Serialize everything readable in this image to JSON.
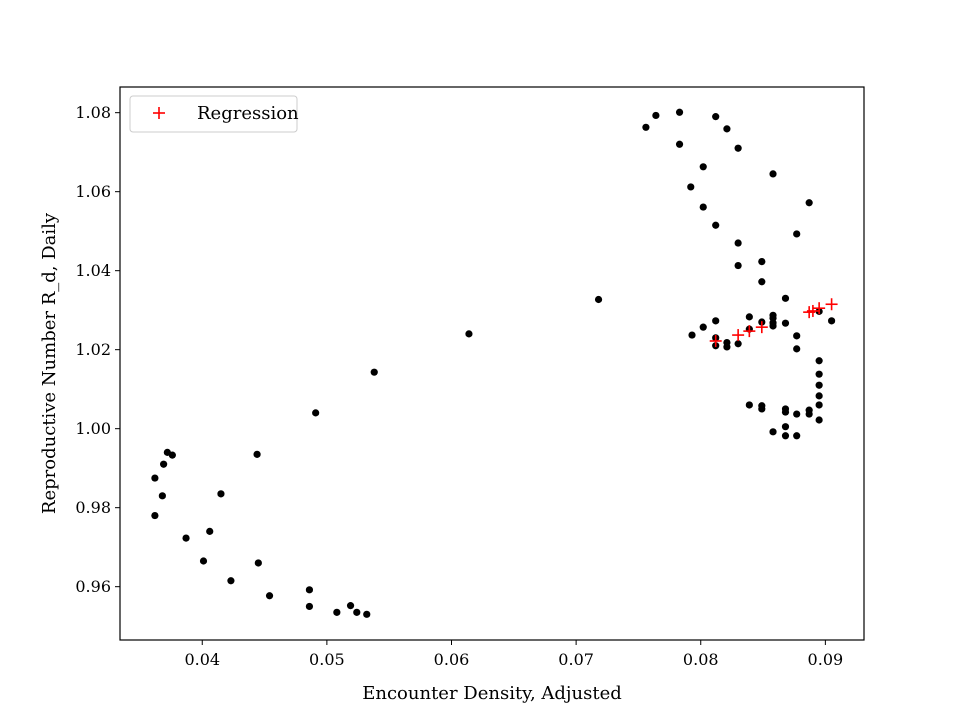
{
  "chart_data": {
    "type": "scatter",
    "xlabel": "Encounter Density, Adjusted",
    "ylabel": "Reproductive Number R_d, Daily",
    "xlim": [
      0.0334,
      0.0931
    ],
    "ylim": [
      0.9465,
      1.0865
    ],
    "xticks": [
      "0.04",
      "0.05",
      "0.06",
      "0.07",
      "0.08",
      "0.09"
    ],
    "xtick_values": [
      0.04,
      0.05,
      0.06,
      0.07,
      0.08,
      0.09
    ],
    "yticks": [
      "0.96",
      "0.98",
      "1.00",
      "1.02",
      "1.04",
      "1.06",
      "1.08"
    ],
    "ytick_values": [
      0.96,
      0.98,
      1.0,
      1.02,
      1.04,
      1.06,
      1.08
    ],
    "grid": false,
    "legend_position": "upper-left",
    "colors": {
      "observed": "#000000",
      "regression": "#ff0000"
    },
    "series": [
      {
        "key": "observed",
        "marker": "dot",
        "points": [
          [
            0.0362,
            0.9875
          ],
          [
            0.0362,
            0.978
          ],
          [
            0.0368,
            0.983
          ],
          [
            0.0369,
            0.991
          ],
          [
            0.0372,
            0.994
          ],
          [
            0.0376,
            0.9933
          ],
          [
            0.0387,
            0.9723
          ],
          [
            0.0401,
            0.9665
          ],
          [
            0.0406,
            0.974
          ],
          [
            0.0415,
            0.9835
          ],
          [
            0.0423,
            0.9615
          ],
          [
            0.0444,
            0.9935
          ],
          [
            0.0445,
            0.966
          ],
          [
            0.0454,
            0.9577
          ],
          [
            0.0486,
            0.9592
          ],
          [
            0.0486,
            0.955
          ],
          [
            0.0491,
            1.004
          ],
          [
            0.0508,
            0.9535
          ],
          [
            0.0519,
            0.9552
          ],
          [
            0.0524,
            0.9535
          ],
          [
            0.0532,
            0.953
          ],
          [
            0.0538,
            1.0143
          ],
          [
            0.0614,
            1.024
          ],
          [
            0.0718,
            1.0327
          ],
          [
            0.0756,
            1.0763
          ],
          [
            0.0764,
            1.0793
          ],
          [
            0.0783,
            1.0801
          ],
          [
            0.0783,
            1.072
          ],
          [
            0.0792,
            1.0612
          ],
          [
            0.0793,
            1.0237
          ],
          [
            0.0802,
            1.0663
          ],
          [
            0.0802,
            1.0561
          ],
          [
            0.0802,
            1.0257
          ],
          [
            0.0812,
            1.079
          ],
          [
            0.0812,
            1.0515
          ],
          [
            0.0812,
            1.0273
          ],
          [
            0.0812,
            1.023
          ],
          [
            0.0812,
            1.021
          ],
          [
            0.0821,
            1.0759
          ],
          [
            0.0821,
            1.0218
          ],
          [
            0.0821,
            1.0207
          ],
          [
            0.083,
            1.071
          ],
          [
            0.083,
            1.047
          ],
          [
            0.083,
            1.0413
          ],
          [
            0.083,
            1.0215
          ],
          [
            0.0839,
            1.0283
          ],
          [
            0.0839,
            1.0252
          ],
          [
            0.0839,
            1.006
          ],
          [
            0.0849,
            1.0423
          ],
          [
            0.0849,
            1.0372
          ],
          [
            0.0849,
            1.027
          ],
          [
            0.0849,
            1.0058
          ],
          [
            0.0849,
            1.005
          ],
          [
            0.0858,
            1.0645
          ],
          [
            0.0858,
            1.0287
          ],
          [
            0.0858,
            1.028
          ],
          [
            0.0858,
            1.0268
          ],
          [
            0.0858,
            1.026
          ],
          [
            0.0858,
            0.9992
          ],
          [
            0.0868,
            1.033
          ],
          [
            0.0868,
            1.0267
          ],
          [
            0.0868,
            1.005
          ],
          [
            0.0868,
            1.0042
          ],
          [
            0.0868,
            1.0005
          ],
          [
            0.0868,
            0.9982
          ],
          [
            0.0877,
            1.0493
          ],
          [
            0.0877,
            1.0235
          ],
          [
            0.0877,
            1.0202
          ],
          [
            0.0877,
            1.0037
          ],
          [
            0.0877,
            0.9982
          ],
          [
            0.0887,
            1.0572
          ],
          [
            0.0887,
            1.0047
          ],
          [
            0.0887,
            1.0037
          ],
          [
            0.0895,
            1.0297
          ],
          [
            0.0895,
            1.0172
          ],
          [
            0.0895,
            1.0138
          ],
          [
            0.0895,
            1.011
          ],
          [
            0.0895,
            1.0083
          ],
          [
            0.0895,
            1.006
          ],
          [
            0.0895,
            1.0022
          ],
          [
            0.0905,
            1.0273
          ]
        ]
      },
      {
        "key": "regression",
        "name": "Regression",
        "marker": "plus",
        "points": [
          [
            0.0812,
            1.0222
          ],
          [
            0.083,
            1.0237
          ],
          [
            0.0839,
            1.0247
          ],
          [
            0.0849,
            1.0257
          ],
          [
            0.0887,
            1.0295
          ],
          [
            0.089,
            1.0298
          ],
          [
            0.0895,
            1.0305
          ],
          [
            0.0905,
            1.0315
          ]
        ]
      }
    ]
  }
}
